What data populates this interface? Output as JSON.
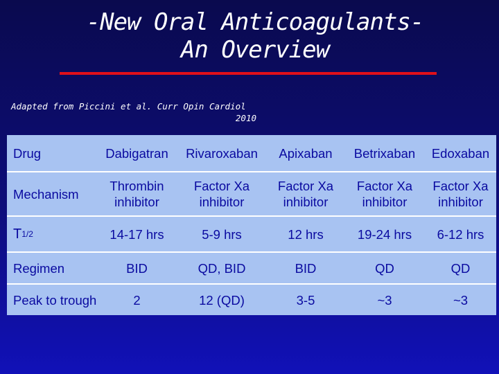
{
  "slide": {
    "title_line1": "-New Oral Anticoagulants-",
    "title_line2": "An Overview",
    "source_line1": "Adapted from Piccini et al. Curr Opin Cardiol",
    "source_line2": "2010"
  },
  "colors": {
    "background_top": "#0a0a4e",
    "background_bottom": "#1111b8",
    "title_rule": "#e0101a",
    "table_fill": "#a8c3f2",
    "table_text": "#0a0aa0"
  },
  "table": {
    "header": {
      "label": "Drug",
      "cells": [
        "Dabigatran",
        "Rivaroxaban",
        "Apixaban",
        "Betrixaban",
        "Edoxaban"
      ]
    },
    "rows": [
      {
        "label": "Mechanism",
        "cells": [
          [
            "Thrombin",
            "inhibitor"
          ],
          [
            "Factor Xa",
            "inhibitor"
          ],
          [
            "Factor Xa",
            "inhibitor"
          ],
          [
            "Factor Xa",
            "inhibitor"
          ],
          [
            "Factor Xa",
            "inhibitor"
          ]
        ]
      },
      {
        "label": "T",
        "label_sub": "1/2",
        "cells": [
          "14-17 hrs",
          "5-9 hrs",
          "12 hrs",
          "19-24 hrs",
          "6-12 hrs"
        ]
      },
      {
        "label": "Regimen",
        "cells": [
          "BID",
          "QD, BID",
          "BID",
          "QD",
          "QD"
        ]
      },
      {
        "label": "Peak to trough",
        "cells": [
          "2",
          "12 (QD)",
          "3-5",
          "~3",
          "~3"
        ]
      }
    ]
  }
}
